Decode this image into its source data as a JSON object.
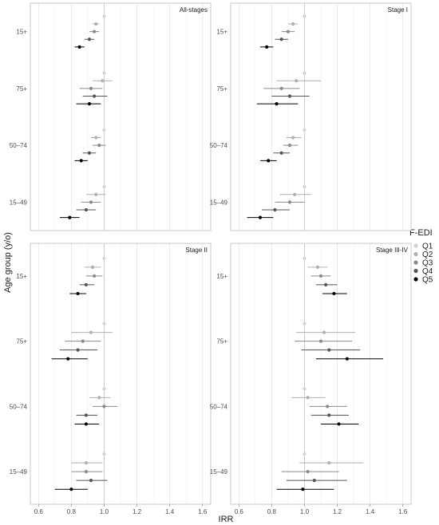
{
  "chart_data": {
    "type": "scatter",
    "xlabel": "IRR",
    "ylabel": "Age group (y/o)",
    "xlim": [
      0.55,
      1.65
    ],
    "x_ticks": [
      "0.6",
      "0.8",
      "1.0",
      "1.2",
      "1.4",
      "1.6"
    ],
    "x_tick_values": [
      0.6,
      0.8,
      1.0,
      1.2,
      1.4,
      1.6
    ],
    "reference_line": 1.0,
    "grid": "vertical major and minor",
    "categories": [
      "15+",
      "75+",
      "50–74",
      "15–49"
    ],
    "legend": {
      "title": "F-EDI",
      "position": "right",
      "items": [
        {
          "label": "Q1",
          "color": "#d3d3d3"
        },
        {
          "label": "Q2",
          "color": "#b0b0b0"
        },
        {
          "label": "Q3",
          "color": "#8a8a8a"
        },
        {
          "label": "Q4",
          "color": "#555555"
        },
        {
          "label": "Q5",
          "color": "#000000"
        }
      ]
    },
    "panels": [
      {
        "title": "All-stages",
        "groups": [
          {
            "category": "15+",
            "points": [
              {
                "q": "Q1",
                "est": 1.0,
                "lo": 1.0,
                "hi": 1.0
              },
              {
                "q": "Q2",
                "est": 0.95,
                "lo": 0.93,
                "hi": 0.97
              },
              {
                "q": "Q3",
                "est": 0.94,
                "lo": 0.91,
                "hi": 0.97
              },
              {
                "q": "Q4",
                "est": 0.91,
                "lo": 0.88,
                "hi": 0.94
              },
              {
                "q": "Q5",
                "est": 0.85,
                "lo": 0.82,
                "hi": 0.88
              }
            ]
          },
          {
            "category": "75+",
            "points": [
              {
                "q": "Q1",
                "est": 1.0,
                "lo": 1.0,
                "hi": 1.0
              },
              {
                "q": "Q2",
                "est": 0.99,
                "lo": 0.93,
                "hi": 1.05
              },
              {
                "q": "Q3",
                "est": 0.92,
                "lo": 0.85,
                "hi": 0.99
              },
              {
                "q": "Q4",
                "est": 0.94,
                "lo": 0.87,
                "hi": 1.02
              },
              {
                "q": "Q5",
                "est": 0.91,
                "lo": 0.83,
                "hi": 0.98
              }
            ]
          },
          {
            "category": "50–74",
            "points": [
              {
                "q": "Q1",
                "est": 1.0,
                "lo": 1.0,
                "hi": 1.0
              },
              {
                "q": "Q2",
                "est": 0.95,
                "lo": 0.92,
                "hi": 0.98
              },
              {
                "q": "Q3",
                "est": 0.97,
                "lo": 0.93,
                "hi": 1.01
              },
              {
                "q": "Q4",
                "est": 0.91,
                "lo": 0.87,
                "hi": 0.95
              },
              {
                "q": "Q5",
                "est": 0.86,
                "lo": 0.82,
                "hi": 0.9
              }
            ]
          },
          {
            "category": "15–49",
            "points": [
              {
                "q": "Q1",
                "est": 1.0,
                "lo": 1.0,
                "hi": 1.0
              },
              {
                "q": "Q2",
                "est": 0.95,
                "lo": 0.89,
                "hi": 1.01
              },
              {
                "q": "Q3",
                "est": 0.92,
                "lo": 0.86,
                "hi": 0.98
              },
              {
                "q": "Q4",
                "est": 0.89,
                "lo": 0.83,
                "hi": 0.95
              },
              {
                "q": "Q5",
                "est": 0.79,
                "lo": 0.73,
                "hi": 0.85
              }
            ]
          }
        ]
      },
      {
        "title": "Stage I",
        "groups": [
          {
            "category": "15+",
            "points": [
              {
                "q": "Q1",
                "est": 1.0,
                "lo": 1.0,
                "hi": 1.0
              },
              {
                "q": "Q2",
                "est": 0.93,
                "lo": 0.9,
                "hi": 0.96
              },
              {
                "q": "Q3",
                "est": 0.9,
                "lo": 0.86,
                "hi": 0.94
              },
              {
                "q": "Q4",
                "est": 0.86,
                "lo": 0.82,
                "hi": 0.9
              },
              {
                "q": "Q5",
                "est": 0.77,
                "lo": 0.73,
                "hi": 0.81
              }
            ]
          },
          {
            "category": "75+",
            "points": [
              {
                "q": "Q1",
                "est": 1.0,
                "lo": 1.0,
                "hi": 1.0
              },
              {
                "q": "Q2",
                "est": 0.95,
                "lo": 0.83,
                "hi": 1.1
              },
              {
                "q": "Q3",
                "est": 0.86,
                "lo": 0.75,
                "hi": 0.97
              },
              {
                "q": "Q4",
                "est": 0.91,
                "lo": 0.8,
                "hi": 1.03
              },
              {
                "q": "Q5",
                "est": 0.83,
                "lo": 0.71,
                "hi": 0.96
              }
            ]
          },
          {
            "category": "50–74",
            "points": [
              {
                "q": "Q1",
                "est": 1.0,
                "lo": 1.0,
                "hi": 1.0
              },
              {
                "q": "Q2",
                "est": 0.93,
                "lo": 0.89,
                "hi": 0.98
              },
              {
                "q": "Q3",
                "est": 0.91,
                "lo": 0.87,
                "hi": 0.96
              },
              {
                "q": "Q4",
                "est": 0.86,
                "lo": 0.81,
                "hi": 0.91
              },
              {
                "q": "Q5",
                "est": 0.78,
                "lo": 0.73,
                "hi": 0.83
              }
            ]
          },
          {
            "category": "15–49",
            "points": [
              {
                "q": "Q1",
                "est": 1.0,
                "lo": 1.0,
                "hi": 1.0
              },
              {
                "q": "Q2",
                "est": 0.94,
                "lo": 0.85,
                "hi": 1.04
              },
              {
                "q": "Q3",
                "est": 0.91,
                "lo": 0.82,
                "hi": 1.0
              },
              {
                "q": "Q4",
                "est": 0.82,
                "lo": 0.74,
                "hi": 0.91
              },
              {
                "q": "Q5",
                "est": 0.73,
                "lo": 0.65,
                "hi": 0.81
              }
            ]
          }
        ]
      },
      {
        "title": "Stage II",
        "groups": [
          {
            "category": "15+",
            "points": [
              {
                "q": "Q1",
                "est": 1.0,
                "lo": 1.0,
                "hi": 1.0
              },
              {
                "q": "Q2",
                "est": 0.93,
                "lo": 0.88,
                "hi": 0.98
              },
              {
                "q": "Q3",
                "est": 0.94,
                "lo": 0.89,
                "hi": 0.99
              },
              {
                "q": "Q4",
                "est": 0.89,
                "lo": 0.85,
                "hi": 0.94
              },
              {
                "q": "Q5",
                "est": 0.84,
                "lo": 0.79,
                "hi": 0.89
              }
            ]
          },
          {
            "category": "75+",
            "points": [
              {
                "q": "Q1",
                "est": 1.0,
                "lo": 1.0,
                "hi": 1.0
              },
              {
                "q": "Q2",
                "est": 0.92,
                "lo": 0.8,
                "hi": 1.05
              },
              {
                "q": "Q3",
                "est": 0.87,
                "lo": 0.76,
                "hi": 0.98
              },
              {
                "q": "Q4",
                "est": 0.84,
                "lo": 0.73,
                "hi": 0.96
              },
              {
                "q": "Q5",
                "est": 0.78,
                "lo": 0.68,
                "hi": 0.9
              }
            ]
          },
          {
            "category": "50–74",
            "points": [
              {
                "q": "Q1",
                "est": 1.0,
                "lo": 1.0,
                "hi": 1.0
              },
              {
                "q": "Q2",
                "est": 0.97,
                "lo": 0.91,
                "hi": 1.04
              },
              {
                "q": "Q3",
                "est": 1.0,
                "lo": 0.93,
                "hi": 1.08
              },
              {
                "q": "Q4",
                "est": 0.89,
                "lo": 0.83,
                "hi": 0.96
              },
              {
                "q": "Q5",
                "est": 0.89,
                "lo": 0.82,
                "hi": 0.97
              }
            ]
          },
          {
            "category": "15–49",
            "points": [
              {
                "q": "Q1",
                "est": 1.0,
                "lo": 1.0,
                "hi": 1.0
              },
              {
                "q": "Q2",
                "est": 0.89,
                "lo": 0.8,
                "hi": 0.99
              },
              {
                "q": "Q3",
                "est": 0.89,
                "lo": 0.8,
                "hi": 0.99
              },
              {
                "q": "Q4",
                "est": 0.92,
                "lo": 0.83,
                "hi": 1.02
              },
              {
                "q": "Q5",
                "est": 0.8,
                "lo": 0.7,
                "hi": 0.9
              }
            ]
          }
        ]
      },
      {
        "title": "Stage III-IV",
        "groups": [
          {
            "category": "15+",
            "points": [
              {
                "q": "Q1",
                "est": 1.0,
                "lo": 1.0,
                "hi": 1.0
              },
              {
                "q": "Q2",
                "est": 1.08,
                "lo": 1.02,
                "hi": 1.14
              },
              {
                "q": "Q3",
                "est": 1.1,
                "lo": 1.04,
                "hi": 1.16
              },
              {
                "q": "Q4",
                "est": 1.13,
                "lo": 1.07,
                "hi": 1.2
              },
              {
                "q": "Q5",
                "est": 1.18,
                "lo": 1.11,
                "hi": 1.26
              }
            ]
          },
          {
            "category": "75+",
            "points": [
              {
                "q": "Q1",
                "est": 1.0,
                "lo": 1.0,
                "hi": 1.0
              },
              {
                "q": "Q2",
                "est": 1.12,
                "lo": 0.95,
                "hi": 1.31
              },
              {
                "q": "Q3",
                "est": 1.1,
                "lo": 0.94,
                "hi": 1.29
              },
              {
                "q": "Q4",
                "est": 1.15,
                "lo": 0.98,
                "hi": 1.34
              },
              {
                "q": "Q5",
                "est": 1.26,
                "lo": 1.07,
                "hi": 1.48
              }
            ]
          },
          {
            "category": "50–74",
            "points": [
              {
                "q": "Q1",
                "est": 1.0,
                "lo": 1.0,
                "hi": 1.0
              },
              {
                "q": "Q2",
                "est": 1.02,
                "lo": 0.92,
                "hi": 1.13
              },
              {
                "q": "Q3",
                "est": 1.14,
                "lo": 1.03,
                "hi": 1.26
              },
              {
                "q": "Q4",
                "est": 1.15,
                "lo": 1.04,
                "hi": 1.27
              },
              {
                "q": "Q5",
                "est": 1.21,
                "lo": 1.1,
                "hi": 1.33
              }
            ]
          },
          {
            "category": "15–49",
            "points": [
              {
                "q": "Q1",
                "est": 1.0,
                "lo": 1.0,
                "hi": 1.0
              },
              {
                "q": "Q2",
                "est": 1.15,
                "lo": 0.97,
                "hi": 1.36
              },
              {
                "q": "Q3",
                "est": 1.02,
                "lo": 0.86,
                "hi": 1.21
              },
              {
                "q": "Q4",
                "est": 1.06,
                "lo": 0.89,
                "hi": 1.26
              },
              {
                "q": "Q5",
                "est": 0.99,
                "lo": 0.83,
                "hi": 1.18
              }
            ]
          }
        ]
      }
    ]
  }
}
